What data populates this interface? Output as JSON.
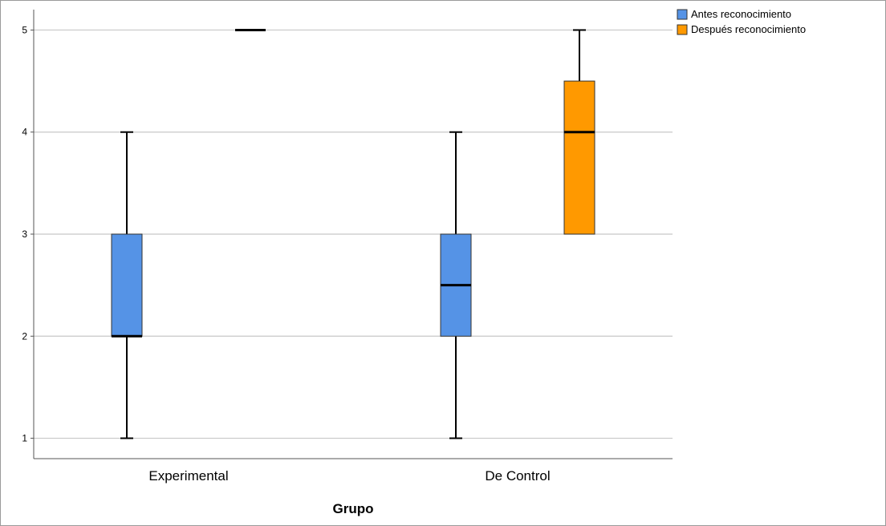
{
  "chart_data": {
    "type": "boxplot",
    "xlabel": "Grupo",
    "ylabel": "",
    "categories": [
      "Experimental",
      "De Control"
    ],
    "ylim": [
      0.8,
      5.2
    ],
    "yticks": [
      1,
      2,
      3,
      4,
      5
    ],
    "grid": true,
    "legend_position": "top-right",
    "series": [
      {
        "name": "Antes reconocimiento",
        "color": "#5593e6",
        "boxes": [
          {
            "category": "Experimental",
            "min": 1,
            "q1": 2,
            "median": 2,
            "q3": 3,
            "max": 4
          },
          {
            "category": "De Control",
            "min": 1,
            "q1": 2,
            "median": 2.5,
            "q3": 3,
            "max": 4
          }
        ]
      },
      {
        "name": "Después reconocimiento",
        "color": "#ff9900",
        "boxes": [
          {
            "category": "Experimental",
            "min": 5,
            "q1": 5,
            "median": 5,
            "q3": 5,
            "max": 5
          },
          {
            "category": "De Control",
            "min": 3,
            "q1": 3,
            "median": 4,
            "q3": 4.5,
            "max": 5
          }
        ]
      }
    ]
  }
}
